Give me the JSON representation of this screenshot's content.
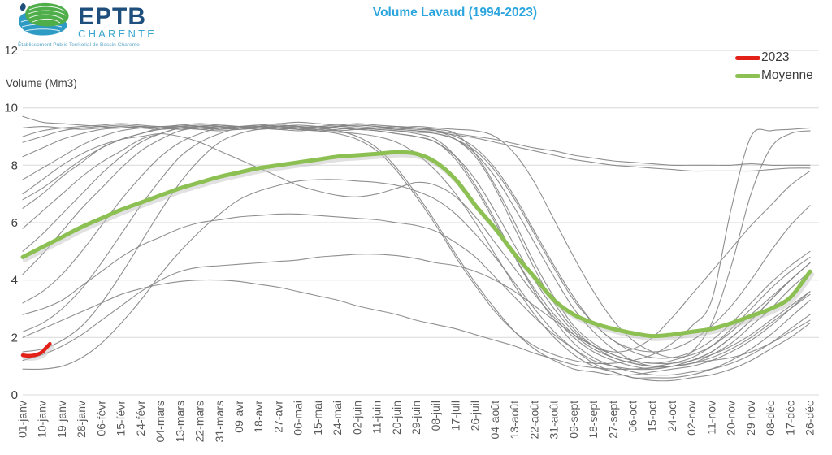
{
  "header": {
    "logo": {
      "name": "EPTB",
      "subname": "CHARENTE",
      "tagline": "Établissement Public Territorial de Bassin Charente"
    },
    "title": "Volume Lavaud (1994-2023)"
  },
  "chart_data": {
    "type": "line",
    "title": "Volume Lavaud (1994-2023)",
    "ylabel": "Volume (Mm3)",
    "xlabel": "",
    "ylim": [
      0,
      12
    ],
    "y_ticks": [
      0,
      2,
      4,
      6,
      8,
      10,
      12
    ],
    "grid": "horizontal",
    "colors": {
      "title": "#2ba5dd",
      "grid": "#d8d8d8",
      "axis_text": "#3f3f3f",
      "tick_text": "#595959",
      "gray_year": "#838383",
      "moyenne": "#8dc052",
      "y2023": "#e32119"
    },
    "legend": {
      "position": "top-right",
      "entries": [
        {
          "label": "2023",
          "color": "#e32119"
        },
        {
          "label": "Moyenne",
          "color": "#8dc052"
        }
      ]
    },
    "categories": [
      "01-janv",
      "10-janv",
      "19-janv",
      "28-janv",
      "06-févr",
      "15-févr",
      "24-févr",
      "04-mars",
      "13-mars",
      "22-mars",
      "31-mars",
      "09-avr",
      "18-avr",
      "27-avr",
      "06-mai",
      "15-mai",
      "24-mai",
      "02-juin",
      "11-juin",
      "20-juin",
      "29-juin",
      "08-juil",
      "17-juil",
      "26-juil",
      "04-août",
      "13-août",
      "22-août",
      "31-août",
      "09-sept",
      "18-sept",
      "27-sept",
      "06-oct",
      "15-oct",
      "24-oct",
      "02-nov",
      "11-nov",
      "20-nov",
      "29-nov",
      "08-déc",
      "17-déc",
      "26-déc"
    ],
    "series": [
      {
        "name": "year-line-01",
        "color": "#838383",
        "width": 1.1,
        "opacity": 0.9,
        "values": [
          9.7,
          9.5,
          9.45,
          9.4,
          9.35,
          9.3,
          9.35,
          9.3,
          9.4,
          9.35,
          9.3,
          9.35,
          9.4,
          9.35,
          9.3,
          9.35,
          9.4,
          9.35,
          9.3,
          9.25,
          9.3,
          9.2,
          8.9,
          8.3,
          7.2,
          5.8,
          4.4,
          3.2,
          2.3,
          1.7,
          1.3,
          1.1,
          1.0,
          1.0,
          1.1,
          1.2,
          1.3,
          1.5,
          1.8,
          2.2,
          2.6
        ]
      },
      {
        "name": "year-line-02",
        "color": "#838383",
        "width": 1.1,
        "opacity": 0.9,
        "values": [
          9.0,
          9.2,
          9.3,
          9.35,
          9.4,
          9.45,
          9.4,
          9.35,
          9.4,
          9.45,
          9.4,
          9.35,
          9.4,
          9.45,
          9.5,
          9.45,
          9.4,
          9.45,
          9.4,
          9.35,
          9.3,
          9.25,
          9.1,
          8.4,
          7.3,
          6.0,
          4.6,
          3.4,
          2.4,
          1.8,
          1.4,
          1.2,
          1.1,
          1.2,
          1.5,
          2.5,
          4.5,
          7.0,
          8.6,
          9.1,
          9.2
        ]
      },
      {
        "name": "year-line-03",
        "color": "#838383",
        "width": 1.1,
        "opacity": 0.9,
        "values": [
          8.3,
          8.6,
          8.9,
          9.1,
          9.25,
          9.3,
          9.35,
          9.3,
          9.25,
          9.3,
          9.35,
          9.3,
          9.25,
          9.3,
          9.35,
          9.3,
          9.2,
          9.0,
          8.6,
          7.9,
          7.0,
          6.0,
          4.9,
          3.9,
          3.0,
          2.2,
          1.6,
          1.2,
          0.9,
          0.8,
          0.7,
          0.7,
          0.8,
          0.9,
          1.0,
          1.2,
          1.5,
          1.9,
          2.4,
          3.0,
          3.6
        ]
      },
      {
        "name": "year-line-04",
        "color": "#838383",
        "width": 1.1,
        "opacity": 0.9,
        "values": [
          7.5,
          7.9,
          8.3,
          8.7,
          9.0,
          9.2,
          9.3,
          9.35,
          9.3,
          9.25,
          9.3,
          9.35,
          9.3,
          9.25,
          9.3,
          9.35,
          9.3,
          9.25,
          9.2,
          9.1,
          9.0,
          8.8,
          8.2,
          7.2,
          6.0,
          4.8,
          3.7,
          2.8,
          2.1,
          1.6,
          1.3,
          1.1,
          1.0,
          1.1,
          1.3,
          1.7,
          2.3,
          3.0,
          3.7,
          4.3,
          4.8
        ]
      },
      {
        "name": "year-line-05",
        "color": "#838383",
        "width": 1.1,
        "opacity": 0.9,
        "values": [
          6.5,
          7.0,
          7.6,
          8.1,
          8.6,
          8.9,
          9.1,
          9.3,
          9.35,
          9.3,
          9.25,
          9.3,
          9.35,
          9.4,
          9.35,
          9.3,
          9.35,
          9.4,
          9.35,
          9.3,
          9.35,
          9.3,
          9.25,
          9.2,
          9.0,
          8.4,
          7.4,
          6.1,
          4.8,
          3.6,
          2.6,
          1.9,
          1.5,
          1.3,
          1.4,
          1.7,
          2.2,
          2.8,
          3.4,
          4.0,
          4.6
        ]
      },
      {
        "name": "year-line-06",
        "color": "#838383",
        "width": 1.1,
        "opacity": 0.9,
        "values": [
          5.8,
          6.4,
          7.0,
          7.6,
          8.1,
          8.5,
          8.9,
          9.1,
          9.3,
          9.35,
          9.3,
          9.25,
          9.3,
          9.35,
          9.3,
          9.25,
          9.2,
          9.25,
          9.3,
          9.25,
          9.2,
          9.1,
          8.9,
          8.5,
          7.8,
          6.8,
          5.6,
          4.4,
          3.3,
          2.5,
          1.9,
          1.6,
          1.5,
          1.6,
          1.9,
          2.4,
          3.1,
          4.0,
          5.0,
          5.9,
          6.6
        ]
      },
      {
        "name": "year-line-07",
        "color": "#838383",
        "width": 1.1,
        "opacity": 0.9,
        "values": [
          4.2,
          4.9,
          5.7,
          6.5,
          7.2,
          7.9,
          8.5,
          8.9,
          9.2,
          9.3,
          9.25,
          9.3,
          9.35,
          9.3,
          9.25,
          9.3,
          9.35,
          9.3,
          9.25,
          9.2,
          9.1,
          8.9,
          8.3,
          7.3,
          6.1,
          4.8,
          3.6,
          2.6,
          1.8,
          1.3,
          1.0,
          0.8,
          0.7,
          0.7,
          0.8,
          0.9,
          1.1,
          1.4,
          1.8,
          2.3,
          2.8
        ]
      },
      {
        "name": "year-line-08",
        "color": "#838383",
        "width": 1.1,
        "opacity": 0.9,
        "values": [
          3.2,
          3.6,
          4.2,
          5.0,
          5.9,
          6.8,
          7.6,
          8.3,
          8.8,
          9.1,
          9.3,
          9.35,
          9.3,
          9.25,
          9.3,
          9.35,
          9.3,
          9.25,
          9.3,
          9.35,
          9.3,
          9.2,
          9.0,
          8.6,
          7.9,
          6.9,
          5.7,
          4.5,
          3.4,
          2.5,
          1.9,
          1.5,
          1.3,
          1.3,
          1.5,
          1.9,
          2.5,
          3.2,
          3.9,
          4.5,
          5.0
        ]
      },
      {
        "name": "year-line-09",
        "color": "#838383",
        "width": 1.1,
        "opacity": 0.9,
        "values": [
          2.2,
          2.5,
          3.0,
          3.7,
          4.6,
          5.6,
          6.6,
          7.5,
          8.3,
          8.8,
          9.1,
          9.3,
          9.35,
          9.3,
          9.25,
          9.2,
          9.25,
          9.3,
          9.25,
          9.2,
          9.15,
          9.1,
          8.9,
          8.4,
          7.6,
          6.5,
          5.3,
          4.1,
          3.0,
          2.2,
          1.6,
          1.2,
          1.0,
          1.0,
          1.1,
          1.4,
          1.8,
          2.4,
          3.0,
          3.7,
          4.3
        ]
      },
      {
        "name": "year-line-10",
        "color": "#838383",
        "width": 1.1,
        "opacity": 0.9,
        "values": [
          1.5,
          1.6,
          1.9,
          2.4,
          3.2,
          4.2,
          5.3,
          6.4,
          7.4,
          8.2,
          8.8,
          9.1,
          9.25,
          9.3,
          9.25,
          9.2,
          9.15,
          9.1,
          9.0,
          8.8,
          8.4,
          7.8,
          7.0,
          6.0,
          4.9,
          3.8,
          2.8,
          2.0,
          1.4,
          1.0,
          0.8,
          0.6,
          0.6,
          0.6,
          0.7,
          0.9,
          1.2,
          1.6,
          2.1,
          2.7,
          3.3
        ]
      },
      {
        "name": "year-line-11",
        "color": "#838383",
        "width": 1.1,
        "opacity": 0.9,
        "values": [
          0.9,
          0.9,
          1.0,
          1.3,
          1.8,
          2.5,
          3.3,
          4.2,
          5.0,
          5.7,
          6.3,
          6.8,
          7.1,
          7.3,
          7.45,
          7.5,
          7.5,
          7.45,
          7.4,
          7.3,
          7.1,
          6.8,
          6.3,
          5.6,
          4.8,
          3.9,
          3.0,
          2.2,
          1.6,
          1.1,
          0.8,
          0.6,
          0.5,
          0.5,
          0.6,
          0.7,
          0.9,
          1.2,
          1.6,
          2.0,
          2.5
        ]
      },
      {
        "name": "year-line-12",
        "color": "#838383",
        "width": 1.1,
        "opacity": 0.9,
        "values": [
          2.8,
          3.0,
          3.3,
          3.8,
          4.3,
          4.8,
          5.2,
          5.5,
          5.8,
          6.0,
          6.1,
          6.2,
          6.25,
          6.3,
          6.3,
          6.25,
          6.2,
          6.15,
          6.1,
          6.0,
          5.9,
          5.7,
          5.3,
          4.8,
          4.1,
          3.4,
          2.7,
          2.1,
          1.6,
          1.2,
          1.0,
          0.9,
          0.9,
          1.0,
          1.2,
          1.5,
          2.0,
          2.6,
          3.3,
          4.0,
          4.6
        ]
      },
      {
        "name": "year-line-13",
        "color": "#838383",
        "width": 1.1,
        "opacity": 0.9,
        "values": [
          2.0,
          2.3,
          2.6,
          2.9,
          3.2,
          3.5,
          3.7,
          3.85,
          3.95,
          4.0,
          4.0,
          3.95,
          3.85,
          3.75,
          3.6,
          3.45,
          3.3,
          3.1,
          2.95,
          2.8,
          2.6,
          2.45,
          2.3,
          2.1,
          1.9,
          1.7,
          1.45,
          1.25,
          1.05,
          0.95,
          0.9,
          0.9,
          0.95,
          1.0,
          1.1,
          1.3,
          1.6,
          2.0,
          2.5,
          3.0,
          3.5
        ]
      },
      {
        "name": "year-line-14",
        "color": "#838383",
        "width": 1.1,
        "opacity": 0.9,
        "values": [
          8.8,
          9.0,
          9.2,
          9.3,
          9.35,
          9.4,
          9.35,
          9.3,
          9.35,
          9.4,
          9.35,
          9.3,
          9.35,
          9.4,
          9.35,
          9.3,
          9.35,
          9.4,
          9.35,
          9.3,
          9.25,
          9.2,
          9.1,
          9.0,
          8.9,
          8.75,
          8.6,
          8.5,
          8.35,
          8.25,
          8.15,
          8.1,
          8.05,
          8.0,
          8.0,
          8.0,
          8.0,
          8.05,
          8.0,
          8.0,
          8.0
        ]
      },
      {
        "name": "year-line-15",
        "color": "#838383",
        "width": 1.1,
        "opacity": 0.9,
        "values": [
          9.3,
          9.35,
          9.3,
          9.25,
          9.3,
          9.35,
          9.3,
          9.25,
          9.3,
          9.35,
          9.4,
          9.35,
          9.3,
          9.35,
          9.4,
          9.35,
          9.3,
          9.25,
          9.3,
          9.25,
          9.2,
          9.15,
          9.05,
          8.95,
          8.8,
          8.65,
          8.5,
          8.35,
          8.2,
          8.1,
          8.0,
          7.95,
          7.9,
          7.85,
          7.8,
          7.8,
          7.8,
          7.8,
          7.85,
          7.9,
          7.9
        ]
      },
      {
        "name": "year-line-16",
        "color": "#838383",
        "width": 1.1,
        "opacity": 0.9,
        "values": [
          5.0,
          5.6,
          6.3,
          7.0,
          7.7,
          8.3,
          8.8,
          9.1,
          9.3,
          9.35,
          9.3,
          9.25,
          9.3,
          9.35,
          9.3,
          9.2,
          9.1,
          8.9,
          8.5,
          7.8,
          6.9,
          5.9,
          4.8,
          3.8,
          2.9,
          2.2,
          1.7,
          1.4,
          1.2,
          1.1,
          1.1,
          1.2,
          1.4,
          1.8,
          2.4,
          3.3,
          6.5,
          9.0,
          9.2,
          9.25,
          9.3
        ]
      },
      {
        "name": "year-line-17",
        "color": "#838383",
        "width": 1.1,
        "opacity": 0.9,
        "values": [
          6.8,
          7.2,
          7.7,
          8.2,
          8.6,
          8.9,
          9.1,
          9.25,
          9.3,
          9.25,
          9.2,
          9.25,
          9.3,
          9.25,
          9.2,
          9.25,
          9.3,
          9.25,
          9.2,
          9.1,
          9.0,
          8.8,
          8.3,
          7.5,
          6.4,
          5.2,
          4.0,
          3.0,
          2.2,
          1.7,
          1.5,
          1.6,
          2.0,
          2.7,
          3.5,
          4.3,
          5.1,
          5.9,
          6.6,
          7.3,
          7.8
        ]
      },
      {
        "name": "year-line-18",
        "color": "#838383",
        "width": 1.1,
        "opacity": 0.9,
        "values": [
          7.0,
          7.5,
          8.0,
          8.4,
          8.7,
          8.9,
          9.0,
          9.1,
          9.0,
          8.8,
          8.5,
          8.2,
          7.9,
          7.6,
          7.3,
          7.1,
          6.95,
          6.9,
          7.0,
          7.2,
          7.4,
          7.3,
          6.9,
          6.2,
          5.3,
          4.4,
          3.5,
          2.7,
          2.0,
          1.5,
          1.2,
          1.0,
          0.9,
          1.0,
          1.2,
          1.5,
          2.0,
          2.6,
          3.3,
          4.0,
          4.6
        ]
      },
      {
        "name": "year-line-19",
        "color": "#838383",
        "width": 1.1,
        "opacity": 0.9,
        "values": [
          1.2,
          1.4,
          1.7,
          2.1,
          2.6,
          3.1,
          3.6,
          4.0,
          4.3,
          4.45,
          4.5,
          4.55,
          4.6,
          4.65,
          4.7,
          4.8,
          4.85,
          4.9,
          4.9,
          4.85,
          4.75,
          4.6,
          4.5,
          4.3,
          4.0,
          3.6,
          3.1,
          2.6,
          2.1,
          1.7,
          1.4,
          1.2,
          1.1,
          1.1,
          1.2,
          1.4,
          1.7,
          2.1,
          2.6,
          3.1,
          3.6
        ]
      },
      {
        "name": "Moyenne",
        "color": "#8dc052",
        "width": 5,
        "shadow": true,
        "values": [
          4.8,
          5.15,
          5.5,
          5.85,
          6.15,
          6.45,
          6.7,
          6.95,
          7.2,
          7.4,
          7.6,
          7.75,
          7.9,
          8.0,
          8.1,
          8.2,
          8.3,
          8.35,
          8.4,
          8.45,
          8.4,
          8.1,
          7.5,
          6.6,
          5.8,
          4.9,
          4.1,
          3.3,
          2.8,
          2.5,
          2.3,
          2.15,
          2.05,
          2.1,
          2.2,
          2.3,
          2.5,
          2.75,
          3.0,
          3.4,
          4.3
        ]
      },
      {
        "name": "2023",
        "color": "#e32119",
        "width": 4.5,
        "shadow": true,
        "points": [
          [
            0,
            1.38
          ],
          [
            0.35,
            1.36
          ],
          [
            0.7,
            1.4
          ],
          [
            1.0,
            1.5
          ],
          [
            1.2,
            1.65
          ],
          [
            1.38,
            1.78
          ]
        ]
      }
    ]
  }
}
